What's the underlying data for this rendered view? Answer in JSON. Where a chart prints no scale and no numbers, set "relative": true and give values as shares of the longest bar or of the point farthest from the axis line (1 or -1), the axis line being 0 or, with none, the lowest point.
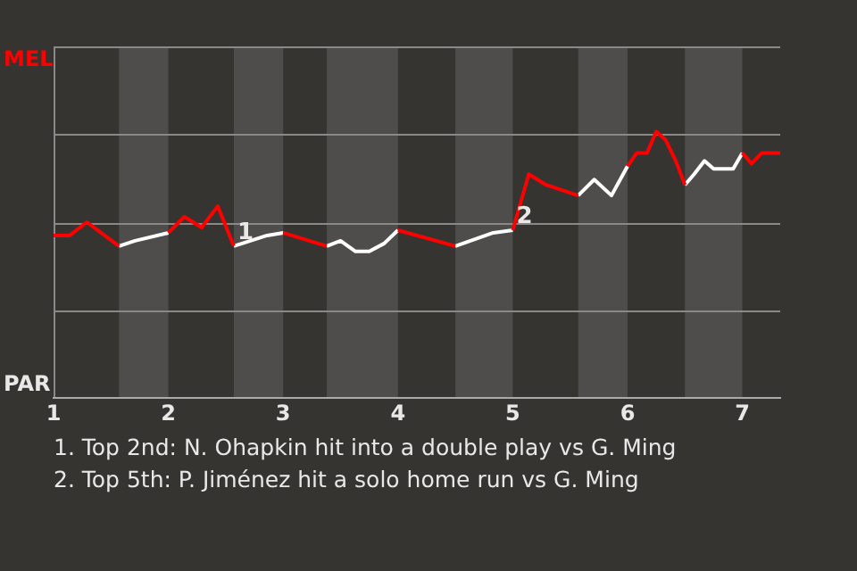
{
  "chart_data": {
    "type": "line",
    "relative": true,
    "series": [
      {
        "color": "#ff0000",
        "x": [
          1,
          1.14,
          1.29,
          1.57,
          null,
          2,
          2.14,
          2.29,
          2.43,
          2.57,
          null,
          3,
          3.38,
          null,
          4,
          4.5,
          null,
          5,
          5.14,
          5.29,
          5.57,
          null,
          6,
          6.08,
          6.17,
          6.25,
          6.33,
          6.42,
          6.5,
          null,
          7,
          7.08,
          7.17,
          7.33
        ],
        "values": [
          0.61,
          0.61,
          0.66,
          0.57,
          null,
          0.62,
          0.68,
          0.64,
          0.72,
          0.57,
          null,
          0.62,
          0.57,
          null,
          0.63,
          0.57,
          null,
          0.63,
          0.84,
          0.8,
          0.76,
          null,
          0.87,
          0.92,
          0.92,
          1,
          0.97,
          0.89,
          0.8,
          null,
          0.92,
          0.88,
          0.92,
          0.92
        ]
      },
      {
        "color": "#ffffff",
        "x": [
          1.57,
          1.71,
          2,
          null,
          2.57,
          2.86,
          3,
          null,
          3.38,
          3.5,
          3.63,
          3.75,
          3.88,
          4,
          null,
          4.5,
          4.83,
          5,
          null,
          5.57,
          5.71,
          5.86,
          6,
          null,
          6.5,
          6.58,
          6.67,
          6.75,
          6.92,
          7
        ],
        "values": [
          0.57,
          0.59,
          0.62,
          null,
          0.57,
          0.61,
          0.62,
          null,
          0.57,
          0.59,
          0.55,
          0.55,
          0.58,
          0.63,
          null,
          0.57,
          0.62,
          0.63,
          null,
          0.76,
          0.82,
          0.76,
          0.87,
          null,
          0.8,
          0.84,
          0.89,
          0.86,
          0.86,
          0.92
        ]
      }
    ],
    "xlim": [
      1,
      7.33
    ],
    "xticks": [
      1,
      2,
      3,
      4,
      5,
      6,
      7
    ],
    "bands": [
      {
        "axis": "x",
        "from": 1.57,
        "to": 2,
        "color": "#4e4d4b"
      },
      {
        "axis": "x",
        "from": 2.57,
        "to": 3,
        "color": "#4e4d4b"
      },
      {
        "axis": "x",
        "from": 3.38,
        "to": 4,
        "color": "#4e4d4b"
      },
      {
        "axis": "x",
        "from": 4.5,
        "to": 5,
        "color": "#4e4d4b"
      },
      {
        "axis": "x",
        "from": 5.57,
        "to": 6,
        "color": "#4e4d4b"
      },
      {
        "axis": "x",
        "from": 6.5,
        "to": 7,
        "color": "#4e4d4b"
      }
    ],
    "annotations": [
      "MEL",
      "PAR",
      {
        "text": "1",
        "x": 2.57,
        "y": 0.57
      },
      {
        "text": "2",
        "x": 5,
        "y": 0.63
      },
      "1. Top 2nd: N. Ohapkin hit into a double play vs G. Ming",
      "2. Top 5th: P. Jiménez hit a solo home run vs G. Ming"
    ],
    "ref_lines": [
      {
        "axis": "y",
        "value": 0.33,
        "color": "#8a8987"
      },
      {
        "axis": "y",
        "value": 0.66,
        "color": "#8a8987"
      },
      {
        "axis": "y",
        "value": 0.99,
        "color": "#8a8987"
      }
    ],
    "legend": false,
    "marker": "none",
    "line_style": "solid"
  }
}
